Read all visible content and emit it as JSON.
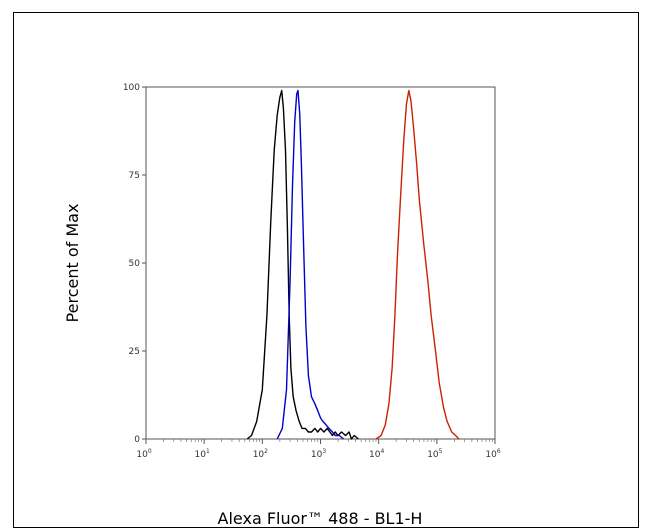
{
  "chart_data": {
    "type": "line",
    "title": "",
    "xlabel": "Alexa Fluor™ 488 - BL1-H",
    "ylabel": "Percent of Max",
    "x_scale": "log",
    "xlim": [
      1,
      1000000
    ],
    "ylim": [
      0,
      100
    ],
    "y_ticks": [
      "0",
      "25",
      "50",
      "75",
      "100"
    ],
    "x_ticks": [
      {
        "base": "10",
        "exp": "0"
      },
      {
        "base": "10",
        "exp": "1"
      },
      {
        "base": "10",
        "exp": "2"
      },
      {
        "base": "10",
        "exp": "3"
      },
      {
        "base": "10",
        "exp": "4"
      },
      {
        "base": "10",
        "exp": "5"
      },
      {
        "base": "10",
        "exp": "6"
      }
    ],
    "grid": false,
    "legend": "none",
    "series": [
      {
        "color": "#000000",
        "points": [
          [
            55,
            0
          ],
          [
            65,
            1
          ],
          [
            80,
            5
          ],
          [
            100,
            14
          ],
          [
            120,
            35
          ],
          [
            140,
            62
          ],
          [
            160,
            82
          ],
          [
            180,
            92
          ],
          [
            200,
            97
          ],
          [
            215,
            99
          ],
          [
            230,
            94
          ],
          [
            250,
            82
          ],
          [
            270,
            60
          ],
          [
            290,
            35
          ],
          [
            310,
            20
          ],
          [
            340,
            12
          ],
          [
            380,
            8
          ],
          [
            430,
            5
          ],
          [
            480,
            3
          ],
          [
            550,
            3
          ],
          [
            620,
            2
          ],
          [
            700,
            2
          ],
          [
            800,
            3
          ],
          [
            900,
            2
          ],
          [
            1000,
            3
          ],
          [
            1150,
            2
          ],
          [
            1300,
            3
          ],
          [
            1450,
            2
          ],
          [
            1600,
            1
          ],
          [
            1800,
            2
          ],
          [
            2000,
            1
          ],
          [
            2300,
            2
          ],
          [
            2700,
            1
          ],
          [
            3100,
            2
          ],
          [
            3400,
            0
          ],
          [
            3800,
            1
          ],
          [
            4500,
            0
          ]
        ]
      },
      {
        "color": "#0000cc",
        "points": [
          [
            180,
            0
          ],
          [
            220,
            3
          ],
          [
            260,
            14
          ],
          [
            300,
            45
          ],
          [
            330,
            72
          ],
          [
            360,
            90
          ],
          [
            390,
            98
          ],
          [
            410,
            99
          ],
          [
            440,
            92
          ],
          [
            470,
            78
          ],
          [
            510,
            56
          ],
          [
            560,
            32
          ],
          [
            620,
            18
          ],
          [
            700,
            12
          ],
          [
            800,
            10
          ],
          [
            900,
            8
          ],
          [
            1000,
            6
          ],
          [
            1100,
            5
          ],
          [
            1250,
            4
          ],
          [
            1400,
            3
          ],
          [
            1600,
            2
          ],
          [
            1800,
            1
          ],
          [
            2100,
            1
          ],
          [
            2500,
            0
          ]
        ]
      },
      {
        "color": "#cc2200",
        "points": [
          [
            9000,
            0
          ],
          [
            11000,
            1
          ],
          [
            13000,
            4
          ],
          [
            15000,
            10
          ],
          [
            17000,
            20
          ],
          [
            19000,
            35
          ],
          [
            21000,
            52
          ],
          [
            24000,
            70
          ],
          [
            27000,
            85
          ],
          [
            30000,
            95
          ],
          [
            33000,
            99
          ],
          [
            36000,
            96
          ],
          [
            40000,
            88
          ],
          [
            45000,
            78
          ],
          [
            50000,
            68
          ],
          [
            60000,
            55
          ],
          [
            70000,
            45
          ],
          [
            80000,
            35
          ],
          [
            95000,
            25
          ],
          [
            110000,
            16
          ],
          [
            130000,
            9
          ],
          [
            150000,
            5
          ],
          [
            180000,
            2
          ],
          [
            210000,
            1
          ],
          [
            240000,
            0
          ]
        ]
      }
    ]
  }
}
